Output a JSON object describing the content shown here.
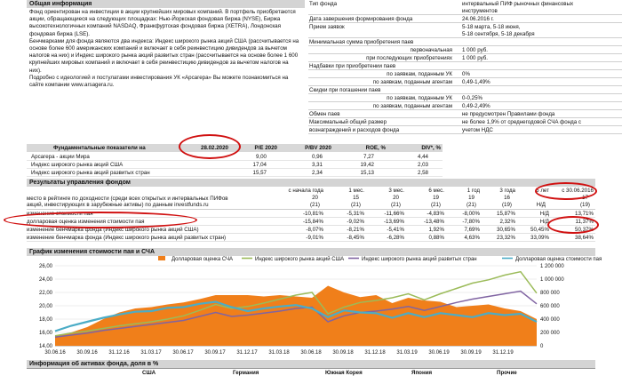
{
  "general": {
    "header": "Общая информация",
    "paragraphs": [
      [
        "Фонд ориентирован на инвестиции в акции крупнейших мировых компаний. В портфель приобретаются",
        "акции, обращающиеся на следующих площадках: Нью-Йоркская фондовая биржа (NYSE), Биржа",
        "высокотехнологичных компаний NASDAQ, Франкфуртская фондовая биржа (XETRA), Лондонская",
        "фондовая биржа (LSE)."
      ],
      [
        "Бенчмарками для фонда являются два индекса: Индекс широкого рынка акций США (рассчитывается на",
        "основе более 600 американских компаний и включает в себя реинвестицию дивидендов за вычетом",
        "налогов на них) и Индекс широкого рынка акций развитых стран (рассчитывается на основе более 1 600",
        "крупнейших мировых компаний и включает в себя реинвестицию дивидендов за вычетом налогов на",
        "них)."
      ],
      [
        "Подробно с идеологией и постулатами инвестирования УК «Арсагера» Вы можете познакомиться на",
        "сайте компании www.arsagera.ru."
      ]
    ]
  },
  "terms": {
    "rows": [
      {
        "label": "Тип фонда",
        "value": [
          "интервальный ПИФ рыночных финансовых",
          "инструментов"
        ]
      },
      {
        "label": "Дата завершения формирования фонда",
        "value": [
          "24.06.2016 г."
        ]
      },
      {
        "label": "Прием заявок",
        "value": [
          "5-18 марта, 5-18 июня,",
          "5-18 сентября, 5-18 декабря"
        ]
      },
      {
        "label": "Минимальная сумма приобретения паев",
        "value": []
      },
      {
        "label": "первоначальная",
        "value": [
          "1 000 руб."
        ],
        "indent": true
      },
      {
        "label": "при последующих приобретениях",
        "value": [
          "1 000 руб."
        ],
        "indent": true
      },
      {
        "label": "Надбавки при приобретении паев",
        "value": []
      },
      {
        "label": "по заявкам, поданным УК",
        "value": [
          "0%"
        ],
        "indent": true
      },
      {
        "label": "по заявкам, поданным агентам",
        "value": [
          "0,49-1,49%"
        ],
        "indent": true
      },
      {
        "label": "Скидки при погашении паев",
        "value": []
      },
      {
        "label": "по заявкам, поданным УК",
        "value": [
          "0-0,25%"
        ],
        "indent": true
      },
      {
        "label": "по заявкам, поданным агентам",
        "value": [
          "0,49-2,49%"
        ],
        "indent": true
      },
      {
        "label": "Обмен паев",
        "value": [
          "не предусмотрен Правилами фонда"
        ]
      },
      {
        "label": "Максимальный общий размер",
        "value": [
          "не более 1,9% от среднегодовой СЧА фонда с"
        ]
      },
      {
        "label": "вознаграждений и расходов фонда",
        "value": [
          "учетом НДС"
        ]
      }
    ]
  },
  "fundamentals": {
    "title": "Фундаментальные показатели на",
    "date": "28.02.2020",
    "columns": [
      "P/E 2020",
      "P/BV 2020",
      "ROE, %",
      "DIV*, %"
    ],
    "rows": [
      {
        "name": "Арсагера - акции Мира",
        "values": [
          "9,00",
          "0,96",
          "7,27",
          "4,44"
        ]
      },
      {
        "name": "Индекс широкого рынка акций США",
        "values": [
          "17,04",
          "3,31",
          "19,42",
          "2,03"
        ]
      },
      {
        "name": "Индекс широкого рынка акций развитых стран",
        "values": [
          "15,57",
          "2,34",
          "15,13",
          "2,58"
        ]
      }
    ]
  },
  "results": {
    "header": "Результаты управления фондом",
    "columns": [
      "с начала года",
      "1 мес.",
      "3 мес.",
      "6 мес.",
      "1 год",
      "3 года",
      "5 лет",
      "с 30.06.2016"
    ],
    "rank_label": [
      "место в рейтинге по доходности (среди всех открытых и интервальных ПИФов",
      "акций, инвестирующих в зарубежные активы) по данным investfunds.ru"
    ],
    "rank_top": [
      "20",
      "15",
      "20",
      "19",
      "19",
      "16",
      "",
      "17"
    ],
    "rank_bottom": [
      "(21)",
      "(21)",
      "(21)",
      "(21)",
      "(21)",
      "(19)",
      "Н/Д",
      "(19)"
    ],
    "rows": [
      {
        "label": "изменение стоимости пая",
        "values": [
          "-10,81%",
          "-5,31%",
          "-11,66%",
          "-4,83%",
          "-8,00%",
          "15,87%",
          "Н/Д",
          "13,71%"
        ]
      },
      {
        "label": "долларовая оценка изменения стоимости пая",
        "values": [
          "-15,84%",
          "-9,02%",
          "-13,69%",
          "-13,48%",
          "-7,80%",
          "2,32%",
          "Н/Д",
          "11,37%"
        ]
      },
      {
        "label": "изменение бенчмарка фонда (Индекс широкого рынка акций США)",
        "values": [
          "-8,07%",
          "-8,21%",
          "-5,41%",
          "1,92%",
          "7,69%",
          "30,65%",
          "50,45%",
          "50,37%"
        ]
      },
      {
        "label": "изменение бенчмарка фонда (Индекс широкого рынка акций развитых стран)",
        "values": [
          "-9,01%",
          "-8,45%",
          "-6,28%",
          "0,88%",
          "4,63%",
          "23,32%",
          "33,09%",
          "38,64%"
        ]
      }
    ]
  },
  "chart_header": "График изменения стоимости пая и СЧА",
  "chart_data": {
    "type": "area",
    "legend": [
      "Долларовая оценка СЧА",
      "Индекс широкого рынка акций США",
      "Индекс широкого рынка акций развитых стран",
      "Долларовая оценка стоимости пая"
    ],
    "colors": [
      "#f07f1a",
      "#9bbb59",
      "#8064a2",
      "#4bacc6"
    ],
    "x_ticks": [
      "30.06.16",
      "30.09.16",
      "31.12.16",
      "31.03.17",
      "30.06.17",
      "30.09.17",
      "31.12.17",
      "31.03.18",
      "30.06.18",
      "30.09.18",
      "31.12.18",
      "31.03.19",
      "30.06.19",
      "30.09.19",
      "31.12.19"
    ],
    "y_left_ticks": [
      "14,00",
      "16,00",
      "18,00",
      "20,00",
      "22,00",
      "24,00",
      "26,00"
    ],
    "y_right_ticks": [
      "0",
      "200 000",
      "400 000",
      "600 000",
      "800 000",
      "1 000 000",
      "1 200 000"
    ],
    "ylim_left": [
      14,
      26
    ],
    "ylim_right": [
      0,
      1200000
    ],
    "series": [
      {
        "name": "Долларовая оценка СЧА",
        "axis": "right",
        "values": [
          150000,
          200000,
          280000,
          400000,
          500000,
          560000,
          580000,
          620000,
          650000,
          700000,
          760000,
          760000,
          760000,
          740000,
          760000,
          740000,
          720000,
          900000,
          800000,
          730000,
          760000,
          640000,
          720000,
          680000,
          660000,
          580000,
          600000,
          620000,
          560000,
          520000,
          400000
        ]
      },
      {
        "name": "Индекс широкого рынка акций США",
        "axis": "left",
        "values": [
          15.5,
          15.9,
          16.2,
          16.6,
          17.0,
          17.3,
          17.6,
          18.0,
          18.5,
          19.3,
          20.2,
          19.6,
          19.9,
          20.4,
          21.0,
          21.6,
          22.0,
          18.8,
          19.8,
          20.5,
          20.8,
          21.2,
          21.8,
          20.9,
          21.8,
          22.6,
          23.4,
          23.9,
          24.6,
          25.1,
          21.9
        ]
      },
      {
        "name": "Индекс широкого рынка акций развитых стран",
        "axis": "left",
        "values": [
          15.3,
          15.6,
          15.9,
          16.3,
          16.6,
          16.9,
          17.2,
          17.5,
          17.8,
          18.4,
          19.0,
          18.4,
          18.6,
          18.9,
          19.2,
          19.6,
          19.8,
          17.6,
          18.5,
          19.0,
          19.2,
          19.5,
          19.9,
          19.3,
          19.9,
          20.5,
          21.0,
          21.4,
          21.8,
          22.2,
          20.3
        ]
      },
      {
        "name": "Долларовая оценка стоимости пая",
        "axis": "left",
        "values": [
          16.2,
          17.0,
          17.6,
          18.2,
          18.7,
          19.1,
          19.2,
          19.7,
          19.8,
          20.3,
          20.6,
          19.8,
          19.2,
          19.6,
          19.9,
          20.1,
          19.6,
          18.3,
          19.3,
          19.0,
          18.9,
          18.2,
          18.9,
          18.3,
          18.9,
          18.6,
          18.3,
          18.9,
          18.6,
          18.8,
          17.6
        ]
      }
    ]
  },
  "assets": {
    "header": "Информация об активах фонда, доля в %",
    "columns": [
      "США",
      "Германия",
      "Южная Корея",
      "Япония",
      "Прочие"
    ]
  }
}
